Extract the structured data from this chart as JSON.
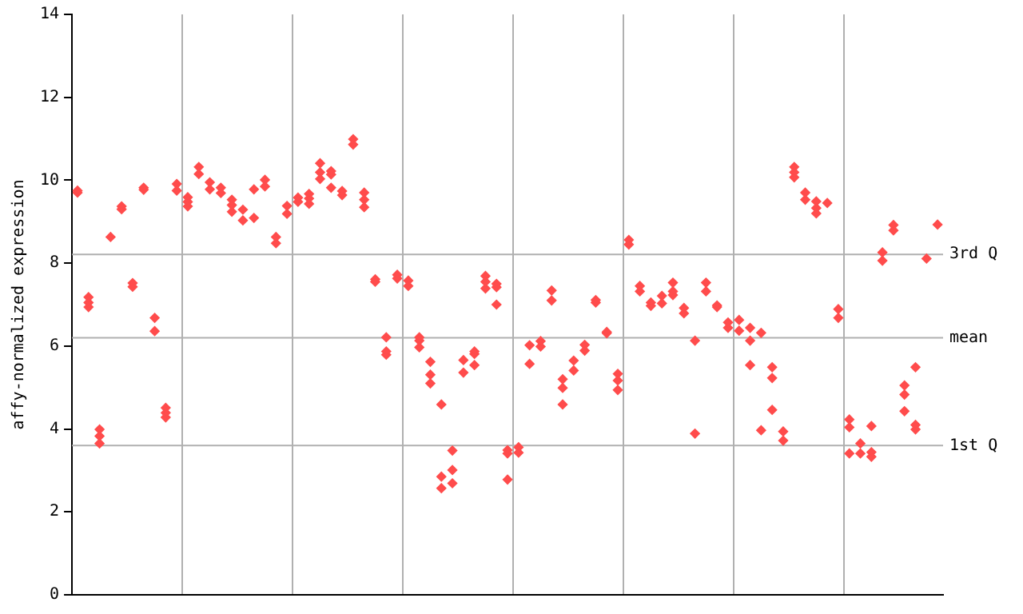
{
  "chart_data": {
    "type": "scatter",
    "ylabel": "affy-normalized expression",
    "categories": [
      null,
      null,
      null,
      null,
      null,
      null,
      null,
      null,
      null,
      null,
      null,
      null,
      null,
      null,
      null,
      null,
      null,
      null,
      null,
      null,
      null,
      null,
      null,
      null,
      null,
      null,
      null,
      null,
      null,
      null,
      null,
      null,
      null,
      null,
      null,
      null,
      null,
      null,
      null,
      null,
      null,
      null,
      null,
      null,
      null,
      null,
      null,
      null,
      null,
      null,
      null,
      null,
      null,
      null,
      null,
      null,
      null,
      null,
      null,
      null,
      null,
      null,
      null,
      null,
      null,
      null,
      null,
      null,
      null,
      null,
      null,
      null,
      null,
      null,
      null,
      null,
      null,
      null,
      null
    ],
    "ylim": [
      0,
      14
    ],
    "yticks": [
      0,
      2,
      4,
      6,
      8,
      10,
      12,
      14
    ],
    "tick_labels": "y",
    "grid": "x",
    "marker": "diamond",
    "ref_lines": [
      {
        "axis": "y",
        "value": 8.21,
        "label": "3rd Q",
        "color": "#b0b0b0"
      },
      {
        "axis": "y",
        "value": 6.2,
        "label": "mean",
        "color": "#b0b0b0"
      },
      {
        "axis": "y",
        "value": 3.6,
        "label": "1st Q",
        "color": "#b0b0b0"
      }
    ],
    "series": [
      {
        "color": "#ff4c4c",
        "values": [
          9.75,
          7.18,
          3.99,
          8.63,
          9.37,
          7.52,
          9.82,
          6.68,
          4.51,
          9.91,
          9.59,
          10.32,
          9.95,
          9.82,
          9.53,
          9.29,
          9.78,
          10.01,
          8.63,
          9.38,
          9.58,
          9.67,
          10.41,
          10.22,
          9.74,
          10.99,
          9.7,
          7.61,
          6.21,
          7.72,
          7.58,
          6.21,
          5.62,
          4.59,
          3.48,
          5.66,
          5.87,
          7.69,
          7.5,
          3.49,
          3.56,
          6.02,
          6.12,
          7.34,
          5.2,
          5.65,
          6.03,
          7.11,
          6.34,
          5.33,
          8.56,
          7.45,
          7.05,
          7.21,
          7.53,
          6.92,
          6.13,
          7.53,
          6.98,
          6.57,
          6.63,
          6.44,
          6.32,
          5.49,
          3.94,
          10.32,
          9.7,
          9.49,
          9.45,
          6.89,
          4.23,
          3.65,
          4.07,
          8.26,
          8.92,
          5.05,
          5.49,
          8.11,
          8.93
        ]
      },
      {
        "color": "#ff4c4c",
        "values": [
          9.7,
          7.05,
          3.83,
          null,
          9.3,
          7.43,
          9.77,
          6.36,
          4.39,
          9.75,
          9.48,
          10.15,
          9.78,
          9.69,
          9.4,
          9.03,
          9.09,
          9.85,
          8.48,
          9.19,
          9.48,
          9.56,
          10.19,
          10.14,
          9.64,
          10.86,
          9.53,
          7.55,
          5.87,
          7.63,
          7.45,
          6.13,
          5.31,
          2.85,
          3.01,
          5.36,
          5.81,
          7.55,
          7.42,
          3.41,
          3.43,
          5.57,
          5.99,
          7.1,
          4.99,
          5.41,
          5.89,
          7.05,
          6.31,
          5.17,
          8.45,
          7.32,
          6.97,
          7.03,
          7.32,
          6.79,
          3.89,
          7.32,
          6.94,
          6.44,
          6.37,
          6.13,
          3.97,
          5.23,
          3.72,
          10.19,
          9.53,
          9.33,
          null,
          6.68,
          4.04,
          3.41,
          3.44,
          8.06,
          8.79,
          4.83,
          4.1,
          null,
          null
        ]
      },
      {
        "color": "#ff4c4c",
        "values": [
          null,
          6.94,
          3.65,
          null,
          null,
          null,
          null,
          null,
          4.28,
          null,
          9.37,
          null,
          null,
          null,
          9.24,
          null,
          null,
          null,
          null,
          null,
          null,
          9.43,
          10.03,
          9.82,
          null,
          null,
          9.35,
          null,
          5.79,
          null,
          null,
          5.97,
          5.1,
          2.57,
          2.69,
          null,
          5.54,
          7.39,
          7.0,
          2.78,
          null,
          null,
          null,
          null,
          4.59,
          null,
          null,
          null,
          null,
          4.94,
          null,
          null,
          null,
          null,
          7.23,
          null,
          null,
          null,
          null,
          null,
          null,
          5.54,
          null,
          4.46,
          null,
          10.07,
          null,
          9.2,
          null,
          null,
          3.41,
          null,
          3.33,
          null,
          null,
          4.43,
          3.99,
          null,
          null
        ]
      }
    ]
  }
}
